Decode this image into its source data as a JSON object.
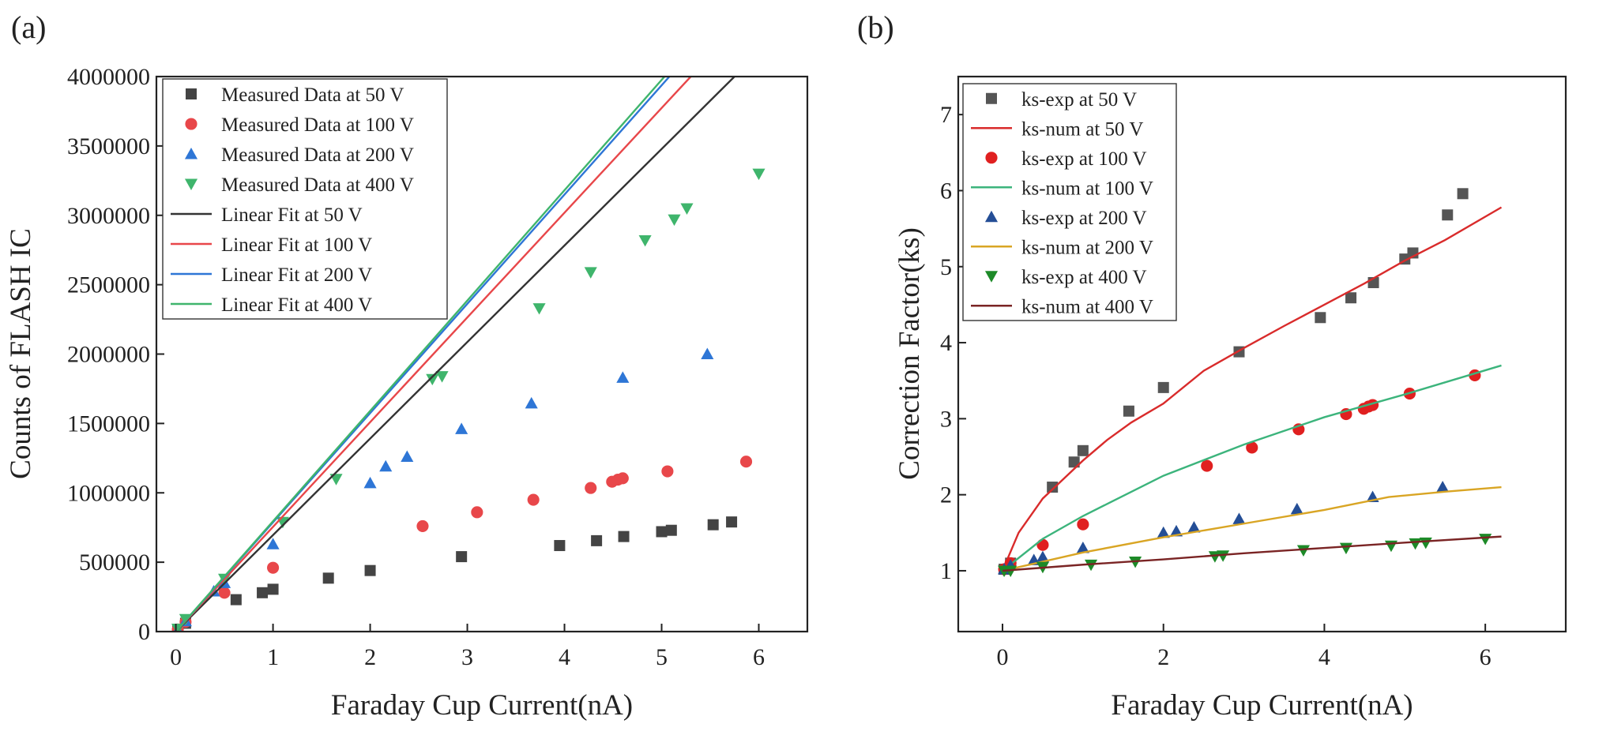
{
  "chart_data": [
    {
      "id": "a",
      "type": "scatter",
      "panel_label": "(a)",
      "title": "",
      "xlabel": "Faraday Cup Current(nA)",
      "ylabel": "Counts of FLASH IC",
      "xlim": [
        -0.2,
        6.5
      ],
      "ylim": [
        0,
        4000000
      ],
      "xticks": [
        0,
        1,
        2,
        3,
        4,
        5,
        6
      ],
      "yticks": [
        0,
        500000,
        1000000,
        1500000,
        2000000,
        2500000,
        3000000,
        3500000,
        4000000
      ],
      "grid": false,
      "legend_position": "top-left",
      "series": [
        {
          "name": "Measured Data at 50 V",
          "kind": "scatter",
          "marker": "square",
          "color": "#444444",
          "x": [
            0.02,
            0.1,
            0.62,
            0.89,
            1.0,
            1.57,
            2.0,
            2.94,
            3.95,
            4.33,
            4.61,
            5.0,
            5.1,
            5.53,
            5.72
          ],
          "y": [
            10000,
            60000,
            230000,
            280000,
            305000,
            385000,
            440000,
            540000,
            620000,
            655000,
            685000,
            720000,
            730000,
            770000,
            790000
          ]
        },
        {
          "name": "Measured Data at 100 V",
          "kind": "scatter",
          "marker": "circle",
          "color": "#e8474a",
          "x": [
            0.02,
            0.1,
            0.5,
            1.0,
            2.54,
            3.1,
            3.68,
            4.27,
            4.49,
            4.55,
            4.6,
            5.06,
            5.87
          ],
          "y": [
            15000,
            70000,
            280000,
            460000,
            760000,
            860000,
            950000,
            1035000,
            1080000,
            1095000,
            1105000,
            1155000,
            1225000
          ]
        },
        {
          "name": "Measured Data at 200 V",
          "kind": "scatter",
          "marker": "triangle-up",
          "color": "#2e76d6",
          "x": [
            0.02,
            0.1,
            0.39,
            0.5,
            1.0,
            2.0,
            2.16,
            2.38,
            2.94,
            3.66,
            4.6,
            5.47
          ],
          "y": [
            10000,
            75000,
            290000,
            350000,
            630000,
            1070000,
            1190000,
            1260000,
            1460000,
            1645000,
            1830000,
            2000000
          ],
          "yoffset": 0
        },
        {
          "name": "Measured Data at 400 V",
          "kind": "scatter",
          "marker": "triangle-down",
          "color": "#3fb56c",
          "x": [
            0.02,
            0.1,
            0.5,
            1.1,
            1.65,
            2.64,
            2.74,
            3.74,
            4.27,
            4.83,
            5.13,
            5.26,
            6.0
          ],
          "y": [
            20000,
            90000,
            380000,
            790000,
            1100000,
            1820000,
            1840000,
            2330000,
            2590000,
            2820000,
            2970000,
            3050000,
            3300000
          ]
        },
        {
          "name": "Linear Fit at 50 V",
          "kind": "line",
          "color": "#333333",
          "x": [
            0,
            5.75
          ],
          "y": [
            0,
            4000000
          ]
        },
        {
          "name": "Linear Fit at 100 V",
          "kind": "line",
          "color": "#e8474a",
          "x": [
            0,
            5.3
          ],
          "y": [
            0,
            4000000
          ]
        },
        {
          "name": "Linear Fit at 200 V",
          "kind": "line",
          "color": "#2e76d6",
          "x": [
            0,
            5.08
          ],
          "y": [
            0,
            4000000
          ]
        },
        {
          "name": "Linear Fit at 400 V",
          "kind": "line",
          "color": "#3fb56c",
          "x": [
            0,
            5.03
          ],
          "y": [
            0,
            4000000
          ]
        }
      ]
    },
    {
      "id": "b",
      "type": "scatter",
      "panel_label": "(b)",
      "title": "",
      "xlabel": "Faraday Cup Current(nA)",
      "ylabel": "Correction Factor(ks)",
      "xlim": [
        -0.55,
        7.0
      ],
      "ylim": [
        0.2,
        7.5
      ],
      "xticks": [
        0,
        2,
        4,
        6
      ],
      "yticks": [
        1,
        2,
        3,
        4,
        5,
        6,
        7
      ],
      "grid": false,
      "legend_position": "top-left",
      "series": [
        {
          "name": "ks-exp at 50 V",
          "kind": "scatter",
          "marker": "square",
          "color": "#555555",
          "x": [
            0.02,
            0.1,
            0.62,
            0.89,
            1.0,
            1.57,
            2.0,
            2.94,
            3.95,
            4.33,
            4.61,
            5.0,
            5.1,
            5.53,
            5.72
          ],
          "y": [
            1.02,
            1.1,
            2.1,
            2.43,
            2.58,
            3.1,
            3.41,
            3.88,
            4.33,
            4.59,
            4.79,
            5.1,
            5.18,
            5.68,
            5.96
          ]
        },
        {
          "name": "ks-num at 50 V",
          "kind": "line",
          "color": "#d92b2b",
          "x": [
            0,
            0.2,
            0.5,
            0.8,
            1.0,
            1.3,
            1.6,
            2.0,
            2.5,
            3.0,
            3.5,
            4.0,
            4.5,
            5.0,
            5.5,
            6.2
          ],
          "y": [
            1.0,
            1.5,
            1.95,
            2.25,
            2.45,
            2.72,
            2.95,
            3.2,
            3.63,
            3.93,
            4.22,
            4.5,
            4.78,
            5.08,
            5.35,
            5.78
          ]
        },
        {
          "name": "ks-exp at 100 V",
          "kind": "scatter",
          "marker": "circle",
          "color": "#e02020",
          "x": [
            0.02,
            0.1,
            0.5,
            1.0,
            2.54,
            3.1,
            3.68,
            4.27,
            4.49,
            4.55,
            4.6,
            5.06,
            5.87
          ],
          "y": [
            1.02,
            1.1,
            1.34,
            1.61,
            2.38,
            2.62,
            2.86,
            3.06,
            3.13,
            3.16,
            3.18,
            3.33,
            3.57
          ]
        },
        {
          "name": "ks-num at 100 V",
          "kind": "line",
          "color": "#3cb47c",
          "x": [
            0,
            0.5,
            1.0,
            2.0,
            3.0,
            4.0,
            5.0,
            6.2
          ],
          "y": [
            1.0,
            1.42,
            1.72,
            2.25,
            2.66,
            3.02,
            3.32,
            3.7
          ]
        },
        {
          "name": "ks-exp at 200 V",
          "kind": "scatter",
          "marker": "triangle-up",
          "color": "#244e96",
          "x": [
            0.02,
            0.1,
            0.39,
            0.5,
            1.0,
            2.0,
            2.16,
            2.38,
            2.94,
            3.66,
            4.6,
            5.47
          ],
          "y": [
            1.02,
            1.07,
            1.14,
            1.18,
            1.3,
            1.5,
            1.52,
            1.57,
            1.68,
            1.81,
            1.97,
            2.1
          ]
        },
        {
          "name": "ks-num  at 200 V",
          "kind": "line",
          "color": "#d9a524",
          "x": [
            0,
            0.5,
            1.0,
            2.0,
            3.0,
            4.0,
            4.8,
            5.5,
            6.2
          ],
          "y": [
            1.0,
            1.12,
            1.24,
            1.44,
            1.62,
            1.8,
            1.97,
            2.04,
            2.1
          ]
        },
        {
          "name": "ks-exp  at 400 V",
          "kind": "scatter",
          "marker": "triangle-down",
          "color": "#1d8a28",
          "x": [
            0.02,
            0.1,
            0.5,
            1.1,
            1.65,
            2.64,
            2.74,
            3.74,
            4.27,
            4.83,
            5.13,
            5.26,
            6.0
          ],
          "y": [
            1.0,
            1.0,
            1.05,
            1.08,
            1.12,
            1.19,
            1.2,
            1.27,
            1.3,
            1.33,
            1.36,
            1.37,
            1.42
          ]
        },
        {
          "name": "ks-num  at 400 V",
          "kind": "line",
          "color": "#7a2424",
          "x": [
            0,
            1.0,
            2.0,
            3.0,
            4.0,
            5.0,
            6.2
          ],
          "y": [
            1.0,
            1.08,
            1.15,
            1.23,
            1.3,
            1.37,
            1.45
          ]
        }
      ]
    }
  ]
}
